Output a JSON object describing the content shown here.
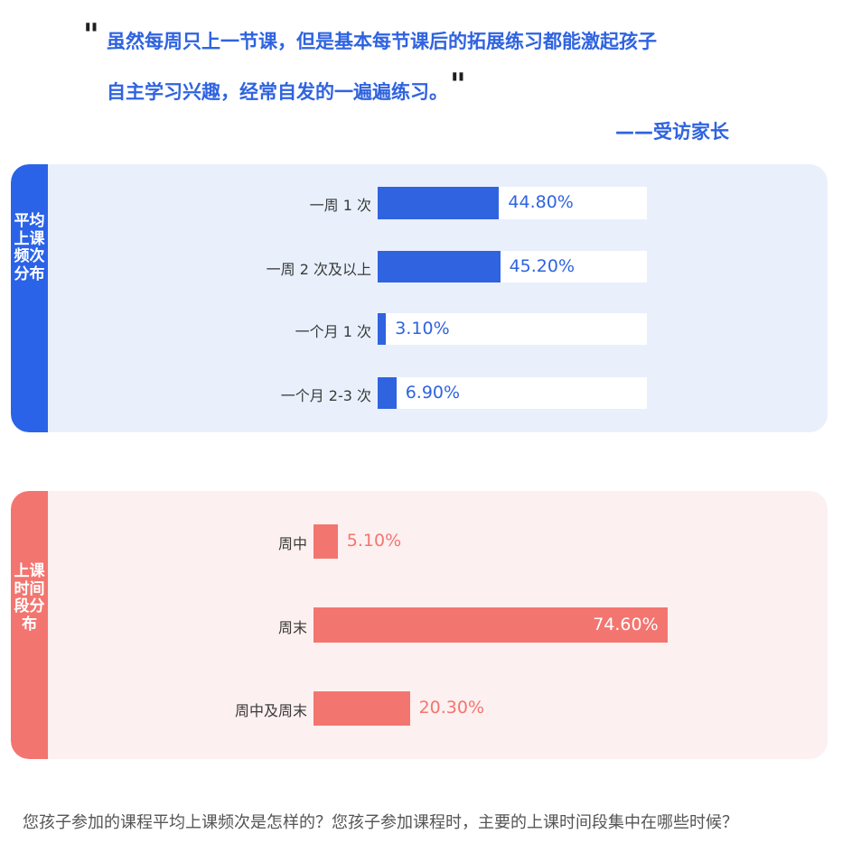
{
  "quote": {
    "open_mark": "\"",
    "close_mark": "\"",
    "line1": "虽然每周只上一节课，但是基本每节课后的拓展练习都能激起孩子",
    "line2": "自主学习兴趣，经常自发的一遍遍练习。",
    "attribution": "——受访家长"
  },
  "colors": {
    "blue": "#2f63e0",
    "red": "#f37570",
    "blue_panel": "#e9f0fc",
    "red_panel": "#fdf0f0"
  },
  "chart_data": [
    {
      "type": "bar",
      "orientation": "horizontal",
      "title": "平均上课频次分布",
      "categories": [
        "一周 1 次",
        "一周 2 次及以上",
        "一个月 1 次",
        "一个月 2-3 次"
      ],
      "values": [
        44.8,
        45.2,
        3.1,
        6.9
      ],
      "labels": [
        "44.80%",
        "45.20%",
        "3.10%",
        "6.90%"
      ],
      "xlim": [
        0,
        100
      ],
      "unit": "%"
    },
    {
      "type": "bar",
      "orientation": "horizontal",
      "title": "上课时间段分布",
      "categories": [
        "周中",
        "周末",
        "周中及周末"
      ],
      "values": [
        5.1,
        74.6,
        20.3
      ],
      "labels": [
        "5.10%",
        "74.60%",
        "20.30%"
      ],
      "xlim": [
        0,
        100
      ],
      "unit": "%"
    }
  ],
  "caption": "您孩子参加的课程平均上课频次是怎样的？您孩子参加课程时，主要的上课时间段集中在哪些时候？"
}
